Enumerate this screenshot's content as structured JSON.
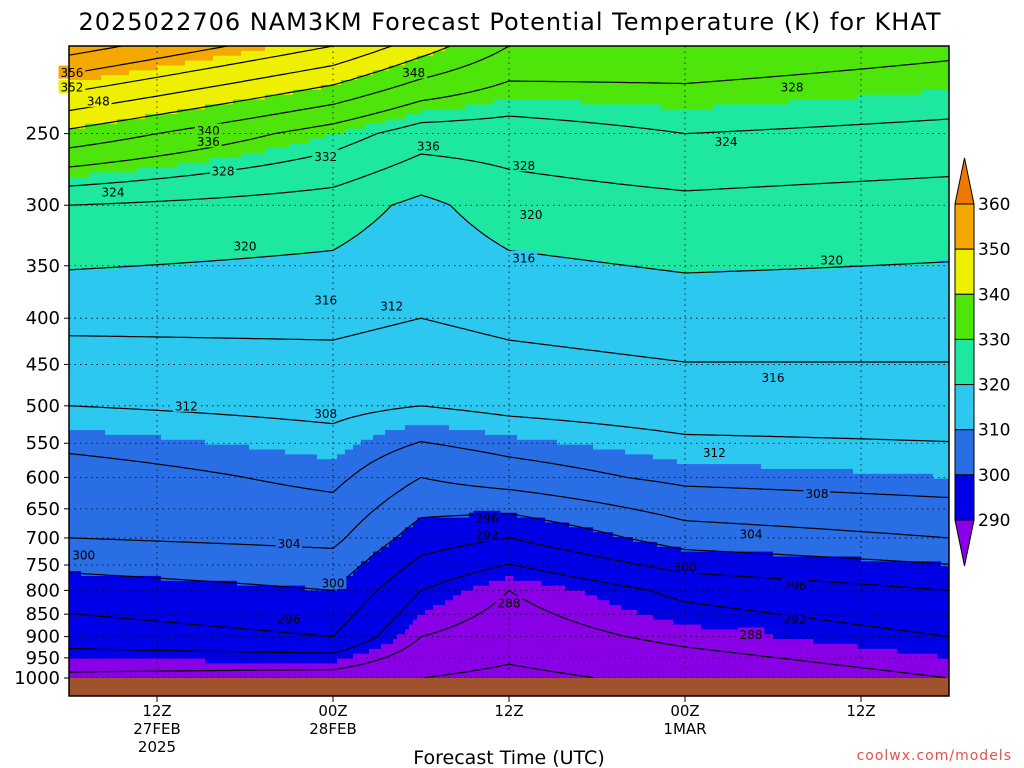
{
  "chart_data": {
    "type": "heatmap",
    "title": "2025022706 NAM3KM Forecast Potential Temperature (K) for KHAT",
    "xlabel": "Forecast Time (UTC)",
    "ylabel": "",
    "y_scale": "log",
    "y_inverted": true,
    "ylim": [
      1000,
      200
    ],
    "y_ticks": [
      250,
      300,
      350,
      400,
      450,
      500,
      550,
      600,
      650,
      700,
      750,
      800,
      850,
      900,
      950,
      1000
    ],
    "x_ticks": [
      {
        "hour": 12,
        "lines": [
          "12Z",
          "27FEB",
          "2025"
        ]
      },
      {
        "hour": 24,
        "lines": [
          "00Z",
          "28FEB"
        ]
      },
      {
        "hour": 36,
        "lines": [
          "12Z"
        ]
      },
      {
        "hour": 48,
        "lines": [
          "00Z",
          "1MAR"
        ]
      },
      {
        "hour": 60,
        "lines": [
          "12Z"
        ]
      }
    ],
    "xlim": [
      6,
      66
    ],
    "grid": true,
    "colorbar": {
      "levels": [
        290,
        300,
        310,
        320,
        330,
        340,
        350,
        360
      ],
      "colors": [
        "#8a00e6",
        "#0000e6",
        "#2a6ee6",
        "#2cc8f0",
        "#1ee8a0",
        "#4ee60a",
        "#eef000",
        "#f5a800",
        "#f07800"
      ]
    },
    "contour_interval": 4,
    "profiles": [
      {
        "hour": 6,
        "theta": {
          "1000": 287,
          "900": 294,
          "800": 298,
          "700": 304,
          "600": 306,
          "500": 312,
          "400": 317,
          "300": 324,
          "250": 339,
          "200": 358
        }
      },
      {
        "hour": 24,
        "theta": {
          "1000": 286,
          "900": 296,
          "800": 300,
          "700": 305,
          "600": 309,
          "500": 313,
          "400": 317,
          "300": 322,
          "250": 330,
          "200": 348
        }
      },
      {
        "hour": 30,
        "theta": {
          "1000": 284,
          "900": 288,
          "800": 292,
          "700": 298,
          "600": 304,
          "500": 312,
          "400": 316,
          "300": 319,
          "250": 326,
          "200": 342
        }
      },
      {
        "hour": 36,
        "theta": {
          "1000": 283,
          "900": 286,
          "800": 288,
          "700": 296,
          "600": 306,
          "500": 313,
          "400": 317,
          "300": 322,
          "250": 326,
          "200": 336
        }
      },
      {
        "hour": 48,
        "theta": {
          "1000": 285,
          "900": 289,
          "800": 293,
          "700": 302,
          "600": 309,
          "500": 314,
          "400": 318,
          "300": 323,
          "250": 328,
          "200": 335
        }
      },
      {
        "hour": 66,
        "theta": {
          "1000": 288,
          "900": 292,
          "800": 296,
          "700": 304,
          "600": 310,
          "500": 314,
          "400": 318,
          "300": 322,
          "250": 327,
          "200": 333
        }
      }
    ],
    "contour_labels": [
      {
        "text": "356",
        "hour": 6.2,
        "p": 214
      },
      {
        "text": "352",
        "hour": 6.2,
        "p": 222
      },
      {
        "text": "348",
        "hour": 8.0,
        "p": 230
      },
      {
        "text": "340",
        "hour": 15.5,
        "p": 248
      },
      {
        "text": "336",
        "hour": 15.5,
        "p": 255
      },
      {
        "text": "328",
        "hour": 16.5,
        "p": 275
      },
      {
        "text": "324",
        "hour": 9.0,
        "p": 290
      },
      {
        "text": "332",
        "hour": 23.5,
        "p": 265
      },
      {
        "text": "348",
        "hour": 29.5,
        "p": 214
      },
      {
        "text": "336",
        "hour": 30.5,
        "p": 258
      },
      {
        "text": "328",
        "hour": 37.0,
        "p": 271
      },
      {
        "text": "324",
        "hour": 50.8,
        "p": 255
      },
      {
        "text": "328",
        "hour": 55.3,
        "p": 222
      },
      {
        "text": "320",
        "hour": 18.0,
        "p": 333
      },
      {
        "text": "320",
        "hour": 37.5,
        "p": 307
      },
      {
        "text": "316",
        "hour": 37.0,
        "p": 343
      },
      {
        "text": "320",
        "hour": 58.0,
        "p": 345
      },
      {
        "text": "316",
        "hour": 23.5,
        "p": 382
      },
      {
        "text": "312",
        "hour": 28.0,
        "p": 388
      },
      {
        "text": "316",
        "hour": 54.0,
        "p": 465
      },
      {
        "text": "312",
        "hour": 14.0,
        "p": 500
      },
      {
        "text": "308",
        "hour": 23.5,
        "p": 510
      },
      {
        "text": "312",
        "hour": 50.0,
        "p": 563
      },
      {
        "text": "308",
        "hour": 57.0,
        "p": 625
      },
      {
        "text": "304",
        "hour": 21.0,
        "p": 710
      },
      {
        "text": "300",
        "hour": 7.0,
        "p": 731
      },
      {
        "text": "304",
        "hour": 52.5,
        "p": 693
      },
      {
        "text": "300",
        "hour": 24.0,
        "p": 785
      },
      {
        "text": "300",
        "hour": 48.0,
        "p": 754
      },
      {
        "text": "296",
        "hour": 21.0,
        "p": 860
      },
      {
        "text": "296",
        "hour": 34.5,
        "p": 665
      },
      {
        "text": "292",
        "hour": 34.5,
        "p": 695
      },
      {
        "text": "288",
        "hour": 36.0,
        "p": 826
      },
      {
        "text": "296",
        "hour": 55.5,
        "p": 790
      },
      {
        "text": "292",
        "hour": 55.5,
        "p": 860
      },
      {
        "text": "288",
        "hour": 52.5,
        "p": 895
      }
    ]
  },
  "footer": {
    "credit": "coolwx.com/models"
  }
}
